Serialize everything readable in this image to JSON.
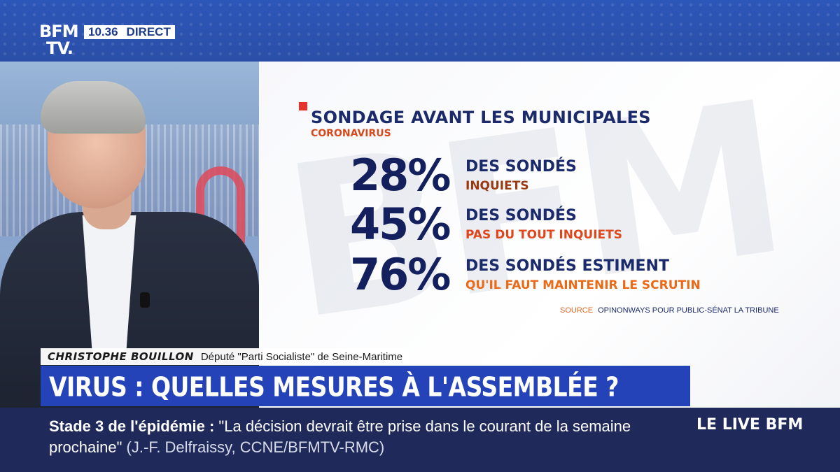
{
  "channel": {
    "logo_line1": "BFM",
    "logo_line2": "TV.",
    "time": "10.36",
    "live_tag": "DIRECT"
  },
  "watermark": "BFM",
  "poll": {
    "title": "SONDAGE AVANT LES MUNICIPALES",
    "subtitle": "CORONAVIRUS",
    "stats": [
      {
        "percent": "28%",
        "line1": "DES SONDÉS",
        "line2": "INQUIETS",
        "value": 28
      },
      {
        "percent": "45%",
        "line1": "DES SONDÉS",
        "line2": "PAS DU TOUT INQUIETS",
        "value": 45
      },
      {
        "percent": "76%",
        "line1": "DES SONDÉS ESTIMENT",
        "line2": "QU'IL FAUT MAINTENIR LE SCRUTIN",
        "value": 76
      }
    ],
    "source_label": "SOURCE",
    "source_text": "OPINONWAYS POUR PUBLIC-SÉNAT LA TRIBUNE"
  },
  "guest": {
    "name": "CHRISTOPHE BOUILLON",
    "role": "Député \"Parti Socialiste\" de Seine-Maritime"
  },
  "headline": "VIRUS : QUELLES MESURES À L'ASSEMBLÉE ?",
  "ticker": {
    "lead": "Stade 3 de l'épidémie :",
    "quote": " \"La décision devrait être prise dans le courant de la semaine prochaine\"",
    "credit": " (J.-F. Delfraissy, CCNE/BFMTV-RMC)",
    "live_label": "LE LIVE BFM"
  },
  "colors": {
    "channel_blue": "#2b4fa8",
    "headline_blue": "#2443b9",
    "navy_text": "#14205e",
    "accent_red": "#e5332a",
    "ticker_bg": "#1f2a5a"
  }
}
